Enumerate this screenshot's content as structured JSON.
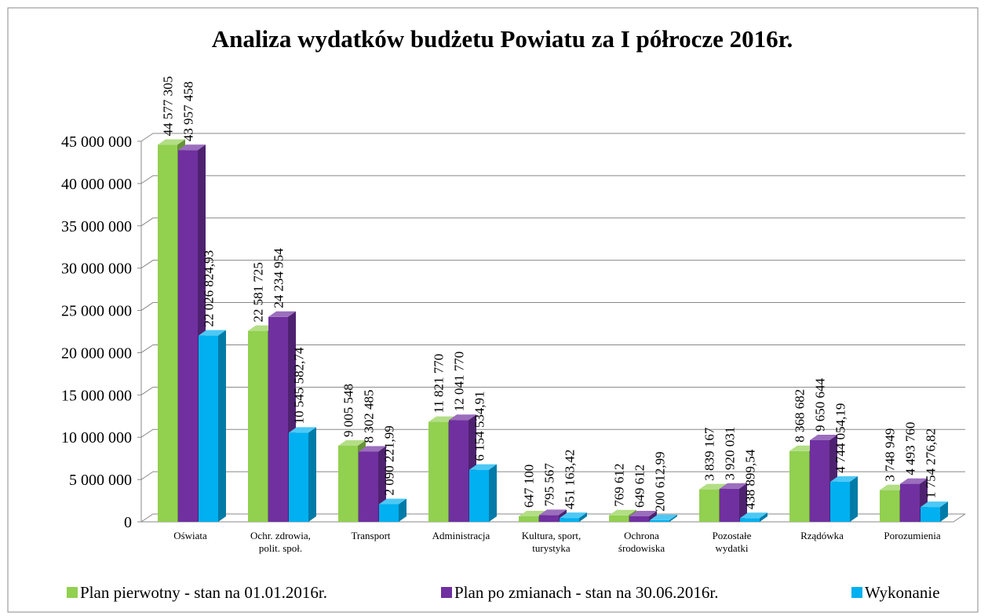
{
  "chart_data": {
    "type": "bar3d",
    "title": "Analiza wydatków  budżetu Powiatu za I półrocze 2016r.",
    "categories": [
      "Oświata",
      "Ochr. zdrowia, polit. społ.",
      "Transport",
      "Administracja",
      "Kultura, sport, turystyka",
      "Ochrona środowiska",
      "Pozostałe wydatki",
      "Rządówka",
      "Porozumienia"
    ],
    "series": [
      {
        "name": "Plan pierwotny - stan na 01.01.2016r.",
        "color": "#92d050",
        "values": [
          44577305,
          22581725,
          9005548,
          11821770,
          647100,
          769612,
          3839167,
          8368682,
          3748949
        ],
        "value_labels": [
          "44 577 305",
          "22 581 725",
          "9 005 548",
          "11 821 770",
          "647 100",
          "769 612",
          "3 839 167",
          "8 368 682",
          "3 748 949"
        ]
      },
      {
        "name": "Plan po zmianach - stan na 30.06.2016r.",
        "color": "#7030a0",
        "values": [
          43957458,
          24234954,
          8302485,
          12041770,
          795567,
          649612,
          3920031,
          9650644,
          4493760
        ],
        "value_labels": [
          "43 957 458",
          "24 234 954",
          "8 302 485",
          "12 041 770",
          "795 567",
          "649 612",
          "3 920 031",
          "9 650 644",
          "4 493 760"
        ]
      },
      {
        "name": "Wykonanie",
        "color": "#00b0f0",
        "values": [
          22026824.93,
          10545582.74,
          2090221.99,
          6154534.91,
          451163.42,
          200612.99,
          438899.54,
          4744054.19,
          1754276.82
        ],
        "value_labels": [
          "22 026 824,93",
          "10 545 582,74",
          "2 090 221,99",
          "6 154 534,91",
          "451 163,42",
          "200 612,99",
          "438 899,54",
          "4 744 054,19",
          "1 754 276,82"
        ]
      }
    ],
    "ylim": [
      0,
      45000000
    ],
    "yticks": [
      0,
      {
        "value": 5000000,
        "label": "5 000 000"
      },
      {
        "value": 10000000,
        "label": "10 000 000"
      },
      {
        "value": 15000000,
        "label": "15 000 000"
      },
      {
        "value": 20000000,
        "label": "20 000 000"
      },
      {
        "value": 25000000,
        "label": "25 000 000"
      },
      {
        "value": 30000000,
        "label": "30 000 000"
      },
      {
        "value": 35000000,
        "label": "35 000 000"
      },
      {
        "value": 40000000,
        "label": "40 000 000"
      },
      {
        "value": 45000000,
        "label": "45 000 000"
      }
    ],
    "grid": true,
    "legend": "bottom"
  }
}
